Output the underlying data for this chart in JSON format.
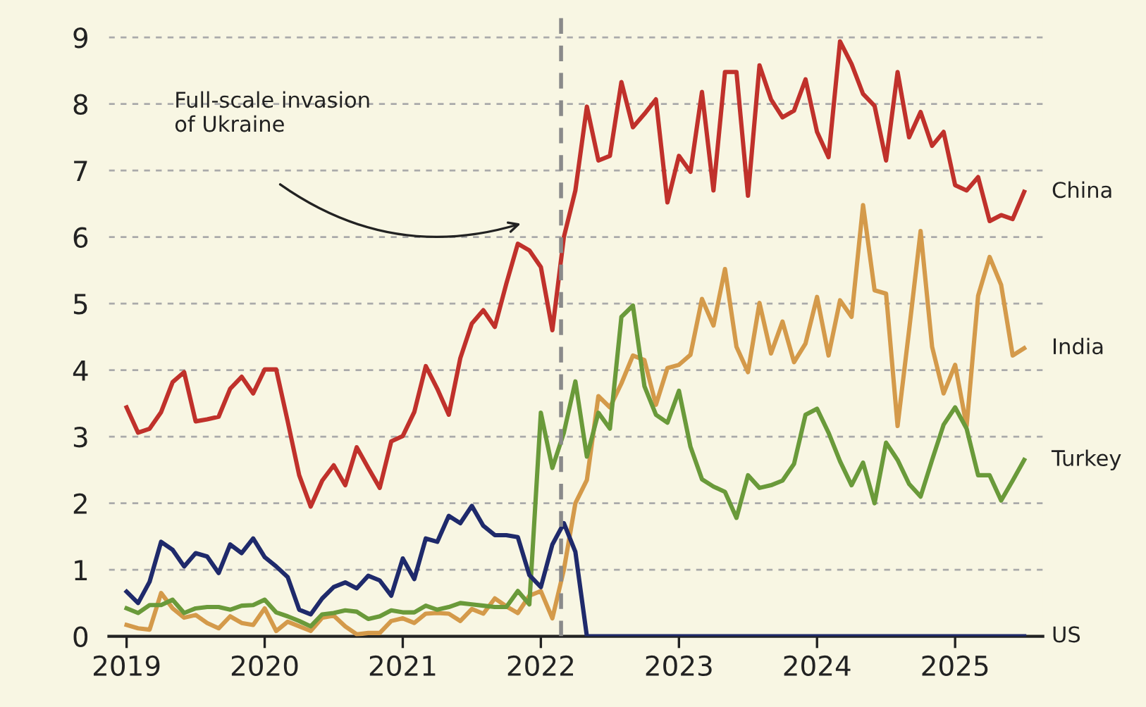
{
  "chart_data": {
    "type": "line",
    "x": [
      "2019-01",
      "2019-02",
      "2019-03",
      "2019-04",
      "2019-05",
      "2019-06",
      "2019-07",
      "2019-08",
      "2019-09",
      "2019-10",
      "2019-11",
      "2019-12",
      "2020-01",
      "2020-02",
      "2020-03",
      "2020-04",
      "2020-05",
      "2020-06",
      "2020-07",
      "2020-08",
      "2020-09",
      "2020-10",
      "2020-11",
      "2020-12",
      "2021-01",
      "2021-02",
      "2021-03",
      "2021-04",
      "2021-05",
      "2021-06",
      "2021-07",
      "2021-08",
      "2021-09",
      "2021-10",
      "2021-11",
      "2021-12",
      "2022-01",
      "2022-02",
      "2022-03",
      "2022-04",
      "2022-05",
      "2022-06",
      "2022-07",
      "2022-08",
      "2022-09",
      "2022-10",
      "2022-11",
      "2022-12",
      "2023-01",
      "2023-02",
      "2023-03",
      "2023-04",
      "2023-05",
      "2023-06",
      "2023-07",
      "2023-08",
      "2023-09",
      "2023-10",
      "2023-11",
      "2023-12",
      "2024-01",
      "2024-02",
      "2024-03",
      "2024-04",
      "2024-05",
      "2024-06",
      "2024-07",
      "2024-08",
      "2024-09",
      "2024-10",
      "2024-11",
      "2024-12",
      "2025-01",
      "2025-02",
      "2025-03",
      "2025-04",
      "2025-05",
      "2025-06",
      "2025-07"
    ],
    "series": [
      {
        "name": "China",
        "color": "#c0312b",
        "values": [
          3.44,
          3.06,
          3.12,
          3.37,
          3.82,
          3.97,
          3.23,
          3.26,
          3.3,
          3.72,
          3.9,
          3.65,
          4.01,
          4.01,
          3.23,
          2.42,
          1.95,
          2.34,
          2.57,
          2.27,
          2.84,
          2.53,
          2.23,
          2.93,
          3.01,
          3.37,
          4.06,
          3.72,
          3.33,
          4.18,
          4.7,
          4.9,
          4.65,
          5.3,
          5.9,
          5.8,
          5.55,
          4.6,
          6.0,
          6.7,
          7.96,
          7.15,
          7.22,
          8.33,
          7.65,
          7.85,
          8.07,
          6.52,
          7.22,
          6.98,
          8.18,
          6.7,
          8.48,
          8.48,
          6.62,
          8.58,
          8.07,
          7.8,
          7.9,
          8.37,
          7.58,
          7.2,
          8.94,
          8.6,
          8.15,
          7.97,
          7.15,
          8.48,
          7.5,
          7.88,
          7.37,
          7.58,
          6.78,
          6.7,
          6.9,
          6.24,
          6.33,
          6.27,
          6.68
        ]
      },
      {
        "name": "India",
        "color": "#d49a4a",
        "values": [
          0.17,
          0.12,
          0.1,
          0.65,
          0.42,
          0.28,
          0.32,
          0.2,
          0.12,
          0.3,
          0.2,
          0.17,
          0.42,
          0.08,
          0.22,
          0.15,
          0.08,
          0.28,
          0.31,
          0.15,
          0.03,
          0.05,
          0.05,
          0.23,
          0.27,
          0.2,
          0.34,
          0.35,
          0.34,
          0.23,
          0.41,
          0.34,
          0.57,
          0.45,
          0.35,
          0.61,
          0.68,
          0.27,
          1.0,
          2.0,
          2.35,
          3.61,
          3.44,
          3.8,
          4.22,
          4.15,
          3.48,
          4.03,
          4.08,
          4.23,
          5.07,
          4.67,
          5.52,
          4.35,
          3.97,
          5.01,
          4.25,
          4.73,
          4.12,
          4.4,
          5.1,
          4.22,
          5.05,
          4.8,
          6.48,
          5.2,
          5.15,
          3.16,
          4.6,
          6.09,
          4.35,
          3.65,
          4.08,
          3.16,
          5.12,
          5.7,
          5.28,
          4.22,
          4.33
        ]
      },
      {
        "name": "Turkey",
        "color": "#6a9a3a",
        "values": [
          0.42,
          0.35,
          0.47,
          0.47,
          0.55,
          0.35,
          0.42,
          0.44,
          0.44,
          0.4,
          0.46,
          0.47,
          0.55,
          0.36,
          0.3,
          0.23,
          0.15,
          0.33,
          0.35,
          0.39,
          0.37,
          0.26,
          0.3,
          0.39,
          0.36,
          0.36,
          0.46,
          0.4,
          0.44,
          0.5,
          0.48,
          0.46,
          0.44,
          0.44,
          0.68,
          0.48,
          3.36,
          2.53,
          3.06,
          3.83,
          2.7,
          3.36,
          3.12,
          4.8,
          4.97,
          3.76,
          3.33,
          3.21,
          3.69,
          2.85,
          2.36,
          2.25,
          2.17,
          1.78,
          2.42,
          2.23,
          2.27,
          2.34,
          2.59,
          3.33,
          3.42,
          3.06,
          2.63,
          2.27,
          2.61,
          2.0,
          2.91,
          2.65,
          2.29,
          2.1,
          2.65,
          3.18,
          3.44,
          3.12,
          2.42,
          2.42,
          2.04,
          2.34,
          2.65
        ]
      },
      {
        "name": "US",
        "color": "#1f2a6b",
        "values": [
          0.67,
          0.5,
          0.82,
          1.42,
          1.3,
          1.05,
          1.25,
          1.2,
          0.95,
          1.38,
          1.25,
          1.47,
          1.19,
          1.05,
          0.89,
          0.4,
          0.33,
          0.57,
          0.74,
          0.81,
          0.72,
          0.91,
          0.84,
          0.61,
          1.17,
          0.86,
          1.47,
          1.42,
          1.81,
          1.7,
          1.96,
          1.66,
          1.52,
          1.52,
          1.49,
          0.92,
          0.74,
          1.38,
          1.7,
          1.27,
          0,
          0,
          0,
          0,
          0,
          0,
          0,
          0,
          0,
          0,
          0,
          0,
          0,
          0,
          0,
          0,
          0,
          0,
          0,
          0,
          0,
          0,
          0,
          0,
          0,
          0,
          0,
          0,
          0,
          0,
          0,
          0,
          0,
          0,
          0,
          0,
          0,
          0,
          0
        ]
      }
    ],
    "xlim": [
      "2018-11-15",
      "2025-08-20"
    ],
    "ylim": [
      0,
      9.35
    ],
    "xticks": [
      "2019",
      "2020",
      "2021",
      "2022",
      "2023",
      "2024",
      "2025"
    ],
    "yticks": [
      0,
      1,
      2,
      3,
      4,
      5,
      6,
      7,
      8,
      9
    ],
    "grid": "y",
    "legend": false,
    "marker": "none",
    "line_style": "solid",
    "ref_lines": [
      {
        "axis": "x",
        "value": "2022-02-24",
        "color": "#8a8a8a",
        "line_style": "dashed"
      }
    ],
    "annotations": [
      "Full-scale invasion\nof Ukraine"
    ]
  }
}
